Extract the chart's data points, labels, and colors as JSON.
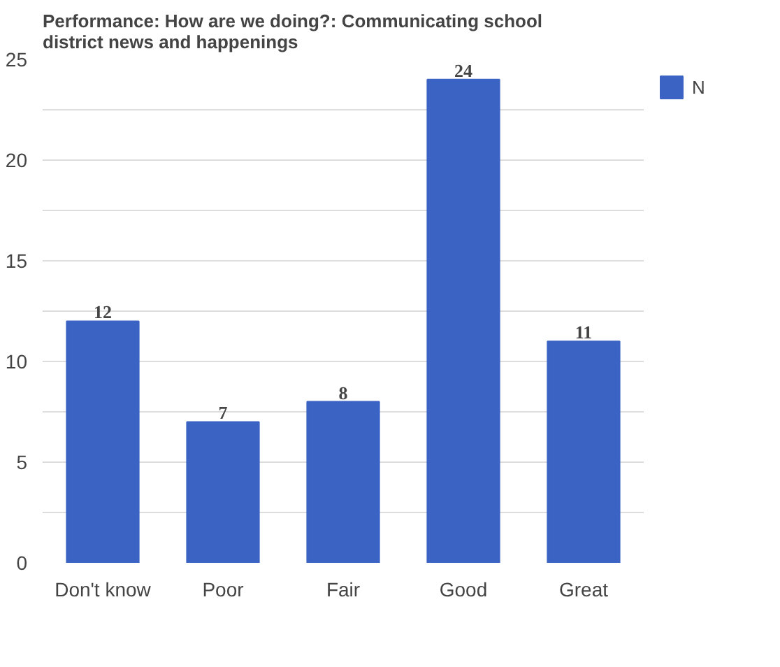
{
  "chart_data": {
    "type": "bar",
    "title": "Performance: How are we doing?: Communicating school district news and happenings",
    "categories": [
      "Don't know",
      "Poor",
      "Fair",
      "Good",
      "Great"
    ],
    "series": [
      {
        "name": "N",
        "color": "#3b63c4",
        "values": [
          12,
          7,
          8,
          24,
          11
        ]
      }
    ],
    "ylim": [
      0,
      25
    ],
    "yticks": [
      0,
      {
        "value": 2.5,
        "label": null
      },
      5,
      {
        "value": 7.5,
        "label": null
      },
      10,
      {
        "value": 12.5,
        "label": null
      },
      15,
      {
        "value": 17.5,
        "label": null
      },
      20,
      {
        "value": 22.5,
        "label": null
      },
      25
    ],
    "grid": "y",
    "legend": "top right",
    "data_labels": true
  }
}
